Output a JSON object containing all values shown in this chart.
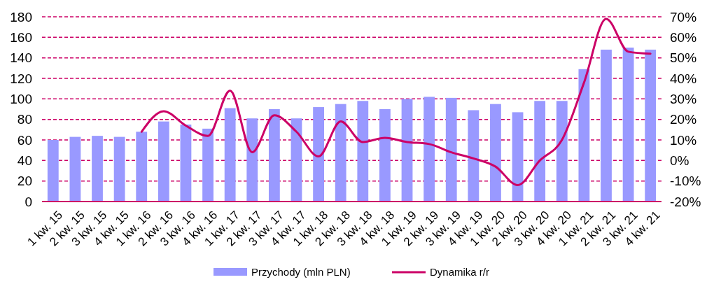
{
  "chart_data": {
    "type": "bar",
    "categories": [
      "1 kw. 15",
      "2 kw. 15",
      "3 kw. 15",
      "4 kw. 15",
      "1 kw. 16",
      "2 kw. 16",
      "3 kw. 16",
      "4 kw. 16",
      "1 kw. 17",
      "2 kw. 17",
      "3 kw. 17",
      "4 kw. 17",
      "1 kw. 18",
      "2 kw. 18",
      "3 kw. 18",
      "4 kw. 18",
      "1 kw. 19",
      "2 kw. 19",
      "3 kw. 19",
      "4 kw. 19",
      "1 kw. 20",
      "2 kw. 20",
      "3 kw. 20",
      "4 kw. 20",
      "1 kw. 21",
      "2 kw. 21",
      "3 kw. 21",
      "4 kw. 21"
    ],
    "series": [
      {
        "name": "Przychody (mln PLN)",
        "color": "#9999ff",
        "values": [
          60,
          63,
          64,
          63,
          68,
          78,
          75,
          71,
          91,
          81,
          90,
          81,
          92,
          95,
          98,
          90,
          100,
          102,
          101,
          89,
          95,
          87,
          98,
          98,
          129,
          148,
          150,
          148
        ]
      },
      {
        "name": "Dynamika r/r",
        "type": "line",
        "axis": "y2",
        "color": "#cc0066",
        "values": [
          null,
          null,
          null,
          null,
          14,
          24,
          17,
          12,
          34,
          4,
          22,
          14,
          2,
          19,
          9,
          11,
          9,
          8,
          4,
          1,
          -3,
          -12,
          0,
          10,
          38,
          69,
          53,
          52
        ]
      }
    ],
    "ylim": [
      0,
      180
    ],
    "yticks": [
      0,
      20,
      40,
      60,
      80,
      100,
      120,
      140,
      160,
      180
    ],
    "y2lim": [
      -20,
      70
    ],
    "y2ticks": [
      {
        "value": -20,
        "label": "-20%"
      },
      {
        "value": -10,
        "label": "-10%"
      },
      {
        "value": 0,
        "label": "0%"
      },
      {
        "value": 10,
        "label": "10%"
      },
      {
        "value": 20,
        "label": "20%"
      },
      {
        "value": 30,
        "label": "30%"
      },
      {
        "value": 40,
        "label": "40%"
      },
      {
        "value": 50,
        "label": "50%"
      },
      {
        "value": 60,
        "label": "60%"
      },
      {
        "value": 70,
        "label": "70%"
      }
    ],
    "grid": "y",
    "legend": "bottom",
    "marker": "none",
    "line_style": "solid"
  }
}
